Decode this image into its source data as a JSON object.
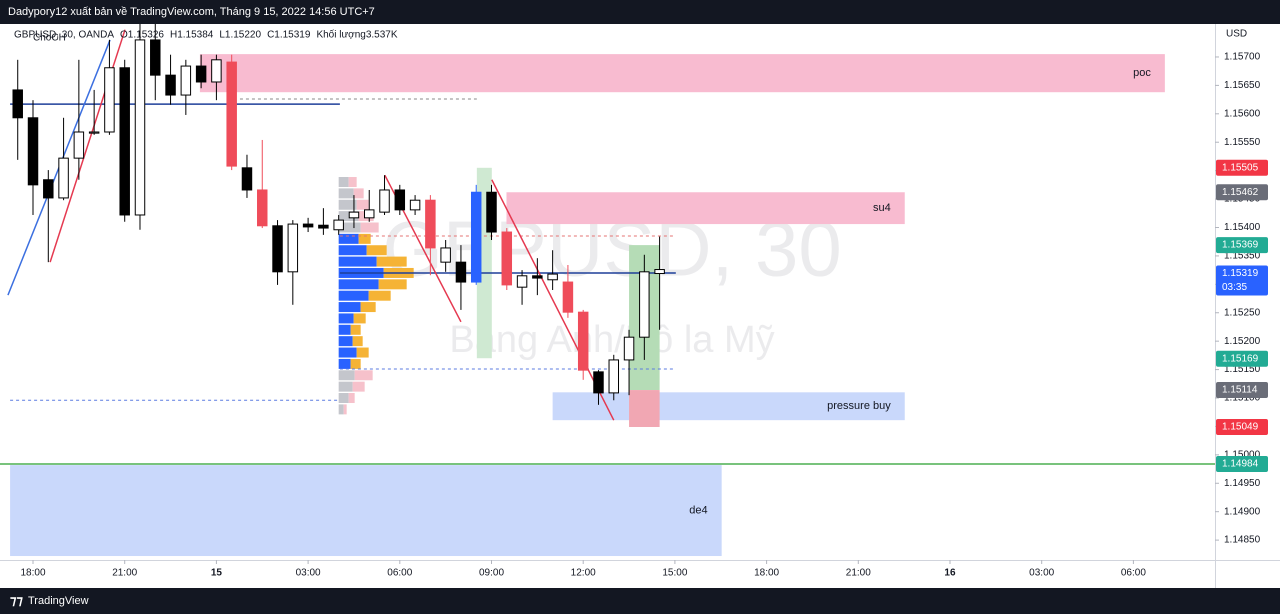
{
  "header": "Dadypory12 xuất bản về TradingView.com, Tháng 9 15, 2022 14:56 UTC+7",
  "footer": "TradingView",
  "chart_data": {
    "type": "candlestick",
    "legend": [
      "GBPUSD, 30, OANDA",
      "O1.15326",
      "H1.15384",
      "L1.15220",
      "C1.15319",
      "Khối lượng3.537K"
    ],
    "watermark": [
      "GBPUSD, 30",
      "Bảng Anh/Đô la Mỹ"
    ],
    "annotation": "ChoCH",
    "y_unit": "USD",
    "xlim": [
      -1.08,
      38.67
    ],
    "ylim": [
      1.14815,
      1.15758
    ],
    "xticks": [
      {
        "value": 0,
        "label": "18:00"
      },
      {
        "value": 3,
        "label": "21:00"
      },
      {
        "value": 6,
        "label": "15"
      },
      {
        "value": 9,
        "label": "03:00"
      },
      {
        "value": 12,
        "label": "06:00"
      },
      {
        "value": 15,
        "label": "09:00"
      },
      {
        "value": 18,
        "label": "12:00"
      },
      {
        "value": 21,
        "label": "15:00"
      },
      {
        "value": 24,
        "label": "18:00"
      },
      {
        "value": 27,
        "label": "21:00"
      },
      {
        "value": 30,
        "label": "16"
      },
      {
        "value": 33,
        "label": "03:00"
      },
      {
        "value": 36,
        "label": "06:00"
      }
    ],
    "yticks": [
      {
        "value": 1.157,
        "label": "1.15700"
      },
      {
        "value": 1.1565,
        "label": "1.15650"
      },
      {
        "value": 1.156,
        "label": "1.15600"
      },
      {
        "value": 1.1555,
        "label": "1.15550"
      },
      {
        "value": 1.155,
        "label": "1.15500"
      },
      {
        "value": 1.1545,
        "label": "1.15450"
      },
      {
        "value": 1.154,
        "label": "1.15400"
      },
      {
        "value": 1.1535,
        "label": "1.15350"
      },
      {
        "value": 1.153,
        "label": "1.15300"
      },
      {
        "value": 1.1525,
        "label": "1.15250"
      },
      {
        "value": 1.152,
        "label": "1.15200"
      },
      {
        "value": 1.1515,
        "label": "1.15150"
      },
      {
        "value": 1.151,
        "label": "1.15100"
      },
      {
        "value": 1.1505,
        "label": "1.15050"
      },
      {
        "value": 1.15,
        "label": "1.15000"
      },
      {
        "value": 1.1495,
        "label": "1.14950"
      },
      {
        "value": 1.149,
        "label": "1.14900"
      },
      {
        "value": 1.1485,
        "label": "1.14850"
      }
    ],
    "candles": {
      "x": [
        -0.5,
        0,
        0.5,
        1,
        1.5,
        2,
        2.5,
        3,
        3.5,
        4,
        4.5,
        5,
        5.5,
        6,
        6.5,
        7,
        7.5,
        8,
        8.5,
        9,
        9.5,
        10,
        10.5,
        11,
        11.5,
        12,
        12.5,
        13,
        13.5,
        14,
        14.5,
        15,
        15.5,
        16,
        16.5,
        17,
        17.5,
        18,
        18.5,
        19,
        19.5,
        20,
        20.5
      ],
      "open": [
        1.15642,
        1.15593,
        1.15484,
        1.15452,
        1.15522,
        1.15566,
        1.15568,
        1.15681,
        1.15422,
        1.1573,
        1.15668,
        1.15633,
        1.15684,
        1.15656,
        1.15691,
        1.15505,
        1.15466,
        1.15403,
        1.15322,
        1.15406,
        1.15404,
        1.15396,
        1.15417,
        1.15417,
        1.15427,
        1.15466,
        1.15431,
        1.15448,
        1.15339,
        1.15339,
        1.15304,
        1.15462,
        1.15392,
        1.15295,
        1.15315,
        1.15308,
        1.15304,
        1.15251,
        1.15146,
        1.15109,
        1.15167,
        1.15207,
        1.15326
      ],
      "high": [
        1.15695,
        1.15624,
        1.15501,
        1.15593,
        1.15695,
        1.15642,
        1.1573,
        1.15695,
        1.15758,
        1.15758,
        1.15704,
        1.15695,
        1.15704,
        1.15704,
        1.15704,
        1.15528,
        1.15554,
        1.15413,
        1.15413,
        1.15417,
        1.15434,
        1.15422,
        1.15457,
        1.15466,
        1.15492,
        1.15475,
        1.15457,
        1.15457,
        1.15378,
        1.15369,
        1.15475,
        1.15475,
        1.15399,
        1.15325,
        1.15346,
        1.1536,
        1.15334,
        1.15255,
        1.15149,
        1.15176,
        1.1522,
        1.15352,
        1.15384
      ],
      "low": [
        1.15519,
        1.15422,
        1.15339,
        1.15448,
        1.15484,
        1.15563,
        1.15563,
        1.1541,
        1.15396,
        1.15624,
        1.15616,
        1.15598,
        1.15645,
        1.15624,
        1.15501,
        1.15452,
        1.15399,
        1.15299,
        1.15264,
        1.15392,
        1.15387,
        1.15387,
        1.15399,
        1.1541,
        1.15422,
        1.15422,
        1.15422,
        1.15316,
        1.15322,
        1.15255,
        1.15299,
        1.15378,
        1.1529,
        1.15264,
        1.15281,
        1.1529,
        1.15241,
        1.15132,
        1.15088,
        1.15096,
        1.15105,
        1.15167,
        1.1522
      ],
      "close": [
        1.15593,
        1.15475,
        1.15452,
        1.15522,
        1.15568,
        1.15568,
        1.15681,
        1.15422,
        1.1573,
        1.15668,
        1.15633,
        1.15684,
        1.15656,
        1.15695,
        1.15508,
        1.15466,
        1.15403,
        1.15322,
        1.15406,
        1.15401,
        1.15399,
        1.15413,
        1.15427,
        1.15431,
        1.15466,
        1.15431,
        1.15448,
        1.15364,
        1.15364,
        1.15304,
        1.15462,
        1.15392,
        1.15299,
        1.15315,
        1.15311,
        1.15318,
        1.15251,
        1.15149,
        1.15109,
        1.15167,
        1.15207,
        1.15322,
        1.15319
      ],
      "colors": [
        "#000000",
        "#000000",
        "#000000",
        "#ffffff",
        "#ffffff",
        "#ffffff",
        "#ffffff",
        "#000000",
        "#ffffff",
        "#000000",
        "#000000",
        "#ffffff",
        "#000000",
        "#ffffff",
        "#ef4c5a",
        "#000000",
        "#ef4c5a",
        "#000000",
        "#ffffff",
        "#000000",
        "#000000",
        "#ffffff",
        "#ffffff",
        "#ffffff",
        "#ffffff",
        "#000000",
        "#ffffff",
        "#ef4c5a",
        "#ffffff",
        "#000000",
        "#2962ff",
        "#000000",
        "#ef4c5a",
        "#ffffff",
        "#000000",
        "#ffffff",
        "#ef4c5a",
        "#ef4c5a",
        "#000000",
        "#ffffff",
        "#ffffff",
        "#ffffff",
        "#ffffff"
      ]
    },
    "zones": [
      {
        "label": "poc",
        "x": [
          5.46,
          37.03
        ],
        "y": [
          1.15705,
          1.15638
        ],
        "color": "#f8bbd0"
      },
      {
        "label": "su4",
        "x": [
          15.49,
          28.52
        ],
        "y": [
          1.15462,
          1.15406
        ],
        "color": "#f8bbd0"
      },
      {
        "label": "pressure buy",
        "x": [
          17.0,
          28.52
        ],
        "y": [
          1.1511,
          1.15061
        ],
        "color": "#c9d8fb"
      },
      {
        "label": "de4",
        "x": [
          -0.75,
          22.53
        ],
        "y": [
          1.14982,
          1.14822
        ],
        "color": "#c9d8fb"
      },
      {
        "x": [
          19.5,
          20.5
        ],
        "y": [
          1.15369,
          1.15114
        ],
        "color": "#b5dcb6"
      },
      {
        "x": [
          19.5,
          20.5
        ],
        "y": [
          1.15114,
          1.15049
        ],
        "color": "#f1a7b3"
      },
      {
        "x": [
          14.52,
          15.01
        ],
        "y": [
          1.15505,
          1.1517
        ],
        "color": "#cfe9d2"
      }
    ],
    "lines": [
      {
        "x": [
          -0.75,
          10.04
        ],
        "y": [
          1.15617,
          1.15617
        ],
        "color": "#1e3f99",
        "dash": false
      },
      {
        "x": [
          6.77,
          14.52
        ],
        "y": [
          1.15626,
          1.15626
        ],
        "color": "#888888",
        "dash": true
      },
      {
        "x": [
          10.04,
          21.03
        ],
        "y": [
          1.1532,
          1.1532
        ],
        "color": "#1e3f99",
        "dash": false
      },
      {
        "x": [
          -1.08,
          38.67
        ],
        "y": [
          1.14984,
          1.14984
        ],
        "color": "#4caf50",
        "dash": false
      },
      {
        "x": [
          -0.75,
          10.04
        ],
        "y": [
          1.15096,
          1.15096
        ],
        "color": "#5b7be0",
        "dash": true
      },
      {
        "x": [
          10.04,
          21.03
        ],
        "y": [
          1.15385,
          1.15385
        ],
        "color": "#e57373",
        "dash": true
      },
      {
        "x": [
          10.04,
          21.03
        ],
        "y": [
          1.15151,
          1.15151
        ],
        "color": "#5b7be0",
        "dash": true
      },
      {
        "x": [
          -0.82,
          2.52
        ],
        "y": [
          1.15281,
          1.1573
        ],
        "color": "#3b6fe0",
        "dash": false
      },
      {
        "x": [
          0.56,
          3.01
        ],
        "y": [
          1.15339,
          1.15748
        ],
        "color": "#e53950",
        "dash": false
      },
      {
        "x": [
          11.51,
          14.0
        ],
        "y": [
          1.15492,
          1.15234
        ],
        "color": "#e53950",
        "dash": false
      },
      {
        "x": [
          15.01,
          19.0
        ],
        "y": [
          1.15484,
          1.15061
        ],
        "color": "#e53950",
        "dash": false
      }
    ],
    "volume_profile": {
      "x": 10,
      "value_area": [
        1.15151,
        1.15385
      ],
      "price": [
        1.1548,
        1.1546,
        1.1544,
        1.1542,
        1.154,
        1.1538,
        1.1536,
        1.1534,
        1.1532,
        1.153,
        1.1528,
        1.1526,
        1.1524,
        1.1522,
        1.152,
        1.1518,
        1.1516,
        1.1514,
        1.1512,
        1.151,
        1.1508
      ],
      "buy": [
        10,
        15,
        18,
        20,
        22,
        20,
        28,
        38,
        45,
        40,
        30,
        22,
        15,
        12,
        14,
        18,
        12,
        16,
        14,
        10,
        5
      ],
      "sell": [
        8,
        10,
        12,
        15,
        18,
        12,
        20,
        30,
        30,
        28,
        22,
        15,
        12,
        10,
        10,
        12,
        10,
        18,
        12,
        6,
        3
      ]
    },
    "price_labels": [
      {
        "value": 1.15505,
        "color": "#f23645"
      },
      {
        "value": 1.15462,
        "color": "#6a6d78"
      },
      {
        "value": 1.15369,
        "color": "#22ab94"
      },
      {
        "value": 1.15319,
        "color": "#2962ff",
        "countdown": "03:35"
      },
      {
        "value": 1.15169,
        "color": "#22ab94"
      },
      {
        "value": 1.15114,
        "color": "#6a6d78"
      },
      {
        "value": 1.15049,
        "color": "#f23645"
      },
      {
        "value": 1.14984,
        "color": "#22ab94"
      }
    ]
  }
}
